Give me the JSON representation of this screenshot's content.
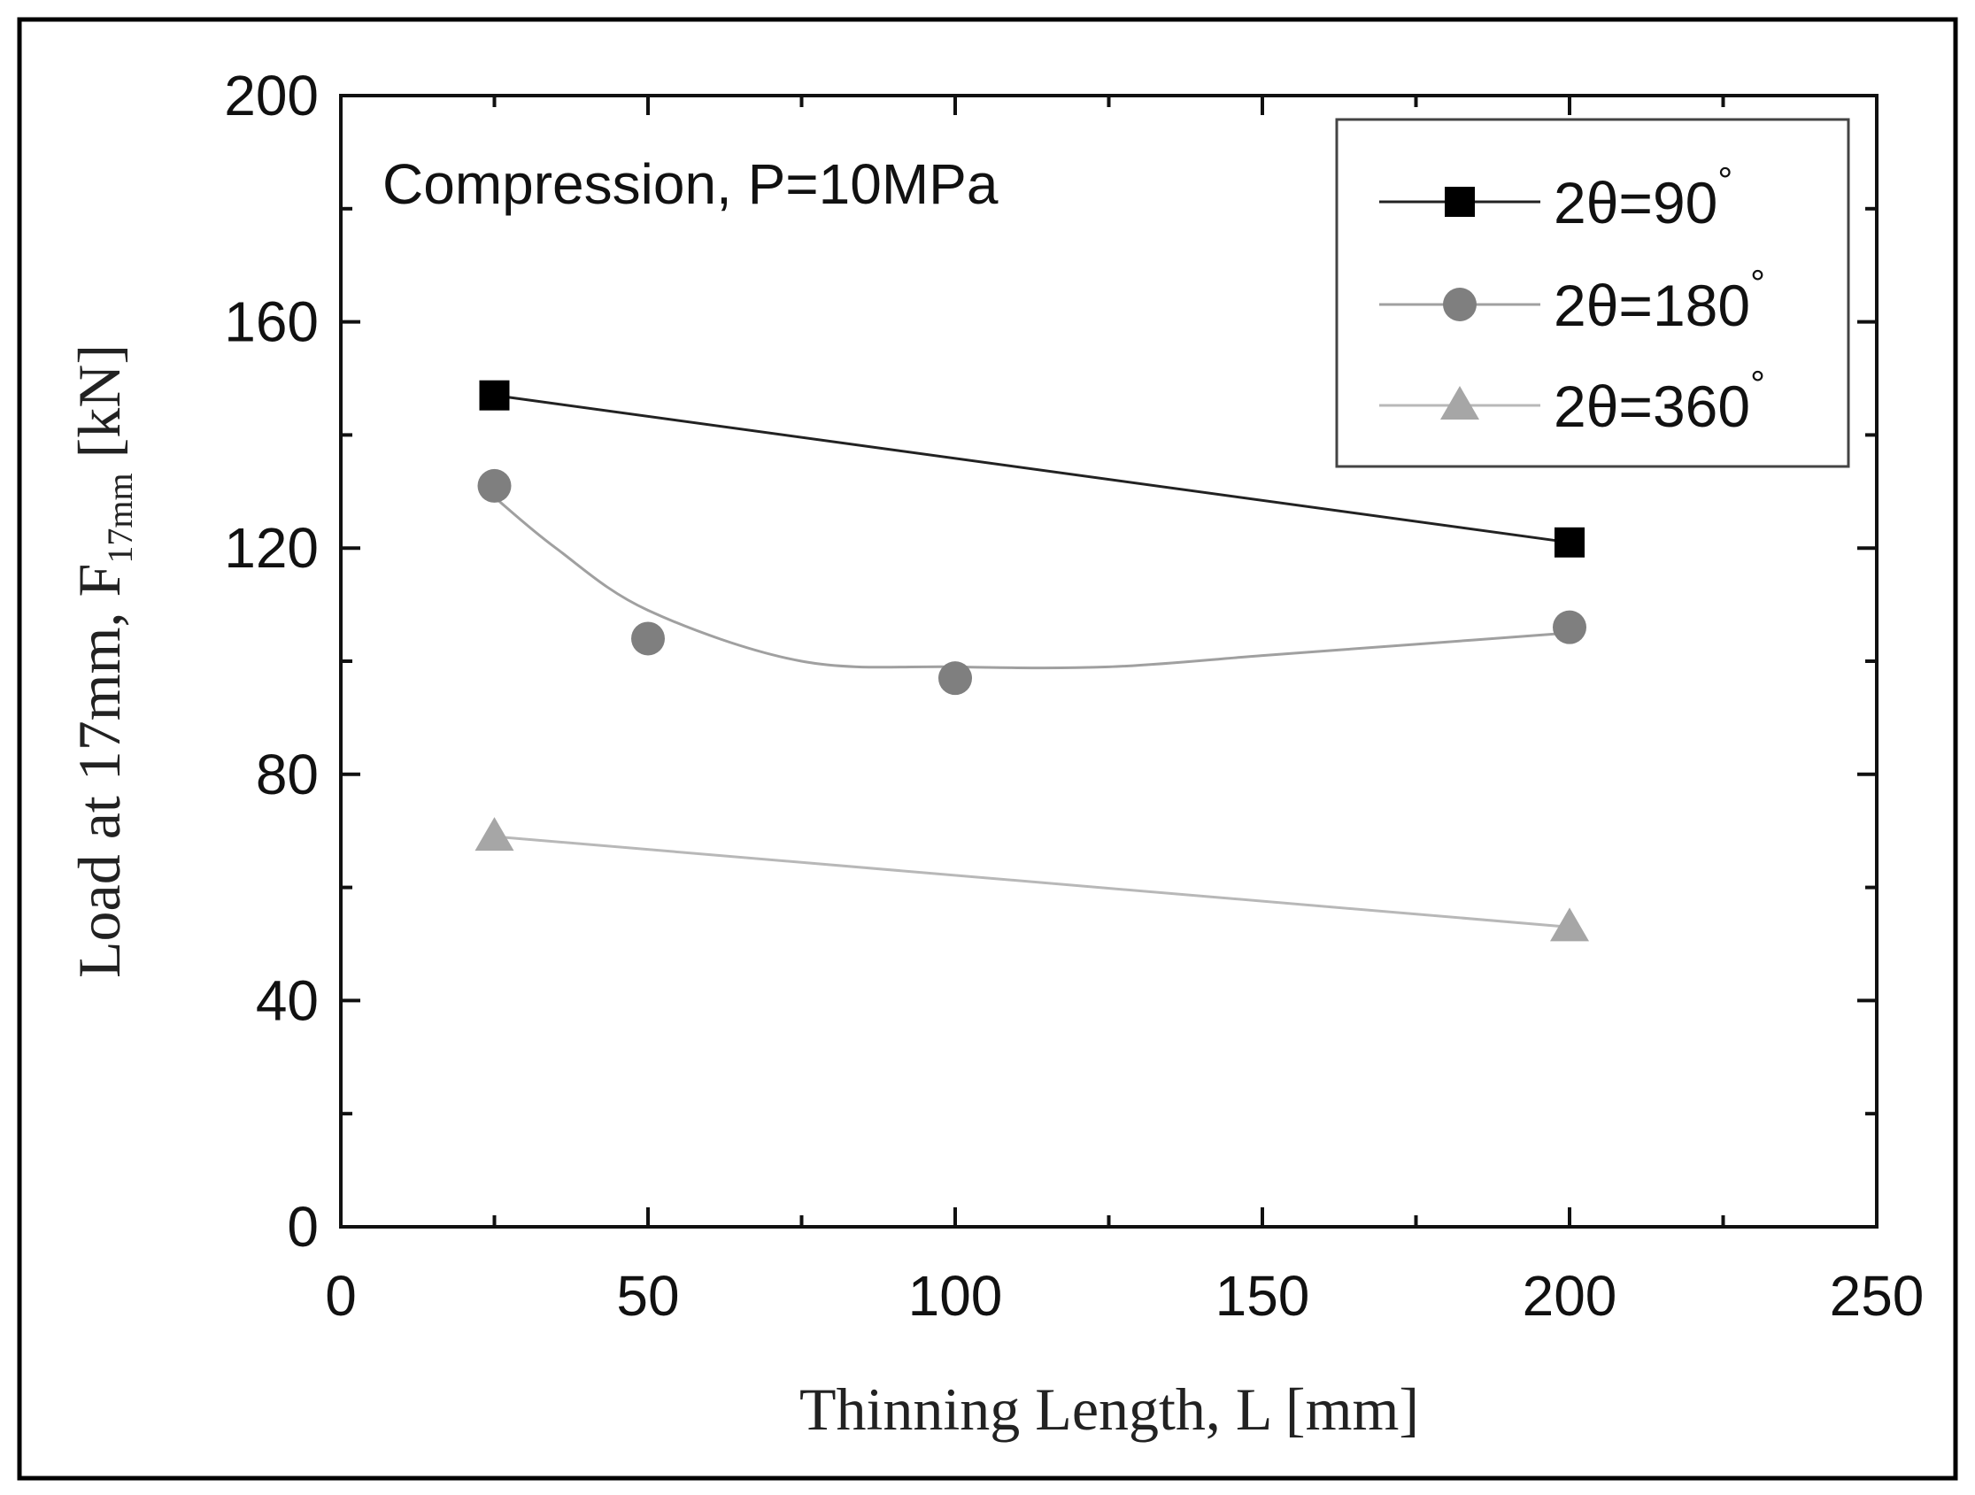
{
  "chart_data": {
    "type": "line",
    "annotation": "Compression, P=10MPa",
    "xlabel": "Thinning Length, L [mm]",
    "ylabel": {
      "prefix": "Load at 17mm, F",
      "subscript": "17mm",
      "suffix": " [kN]"
    },
    "xlim": [
      0,
      250
    ],
    "ylim": [
      0,
      200
    ],
    "x_ticks": [
      0,
      50,
      100,
      150,
      200,
      250
    ],
    "x_tick_labels": [
      "0",
      "50",
      "100",
      "150",
      "200",
      "250"
    ],
    "y_ticks": [
      0,
      40,
      80,
      120,
      160,
      200
    ],
    "y_tick_labels": [
      "0",
      "40",
      "80",
      "120",
      "160",
      "200"
    ],
    "x_minor_step": 25,
    "y_minor_step": 20,
    "grid": false,
    "legend_position": "top-right",
    "series": [
      {
        "name": "2θ=90°",
        "label_main": "2θ=90",
        "label_sup": "°",
        "marker": "square",
        "color": "#000000",
        "line_color": "#222222",
        "smooth": false,
        "x": [
          25,
          200
        ],
        "y": [
          147,
          121
        ]
      },
      {
        "name": "2θ=180°",
        "label_main": "2θ=180",
        "label_sup": "°",
        "marker": "circle",
        "color": "#7f7f7f",
        "line_color": "#a0a0a0",
        "smooth": true,
        "fit_x": [
          25,
          35,
          50,
          75,
          100,
          125,
          150,
          175,
          200
        ],
        "fit_y": [
          129,
          120,
          109,
          100,
          99,
          99,
          101,
          103,
          105
        ],
        "x": [
          25,
          50,
          100,
          200
        ],
        "y": [
          131,
          104,
          97,
          106
        ]
      },
      {
        "name": "2θ=360°",
        "label_main": "2θ=360",
        "label_sup": "°",
        "marker": "triangle",
        "color": "#a6a6a6",
        "line_color": "#b8b8b8",
        "smooth": false,
        "x": [
          25,
          200
        ],
        "y": [
          69,
          53
        ]
      }
    ]
  }
}
